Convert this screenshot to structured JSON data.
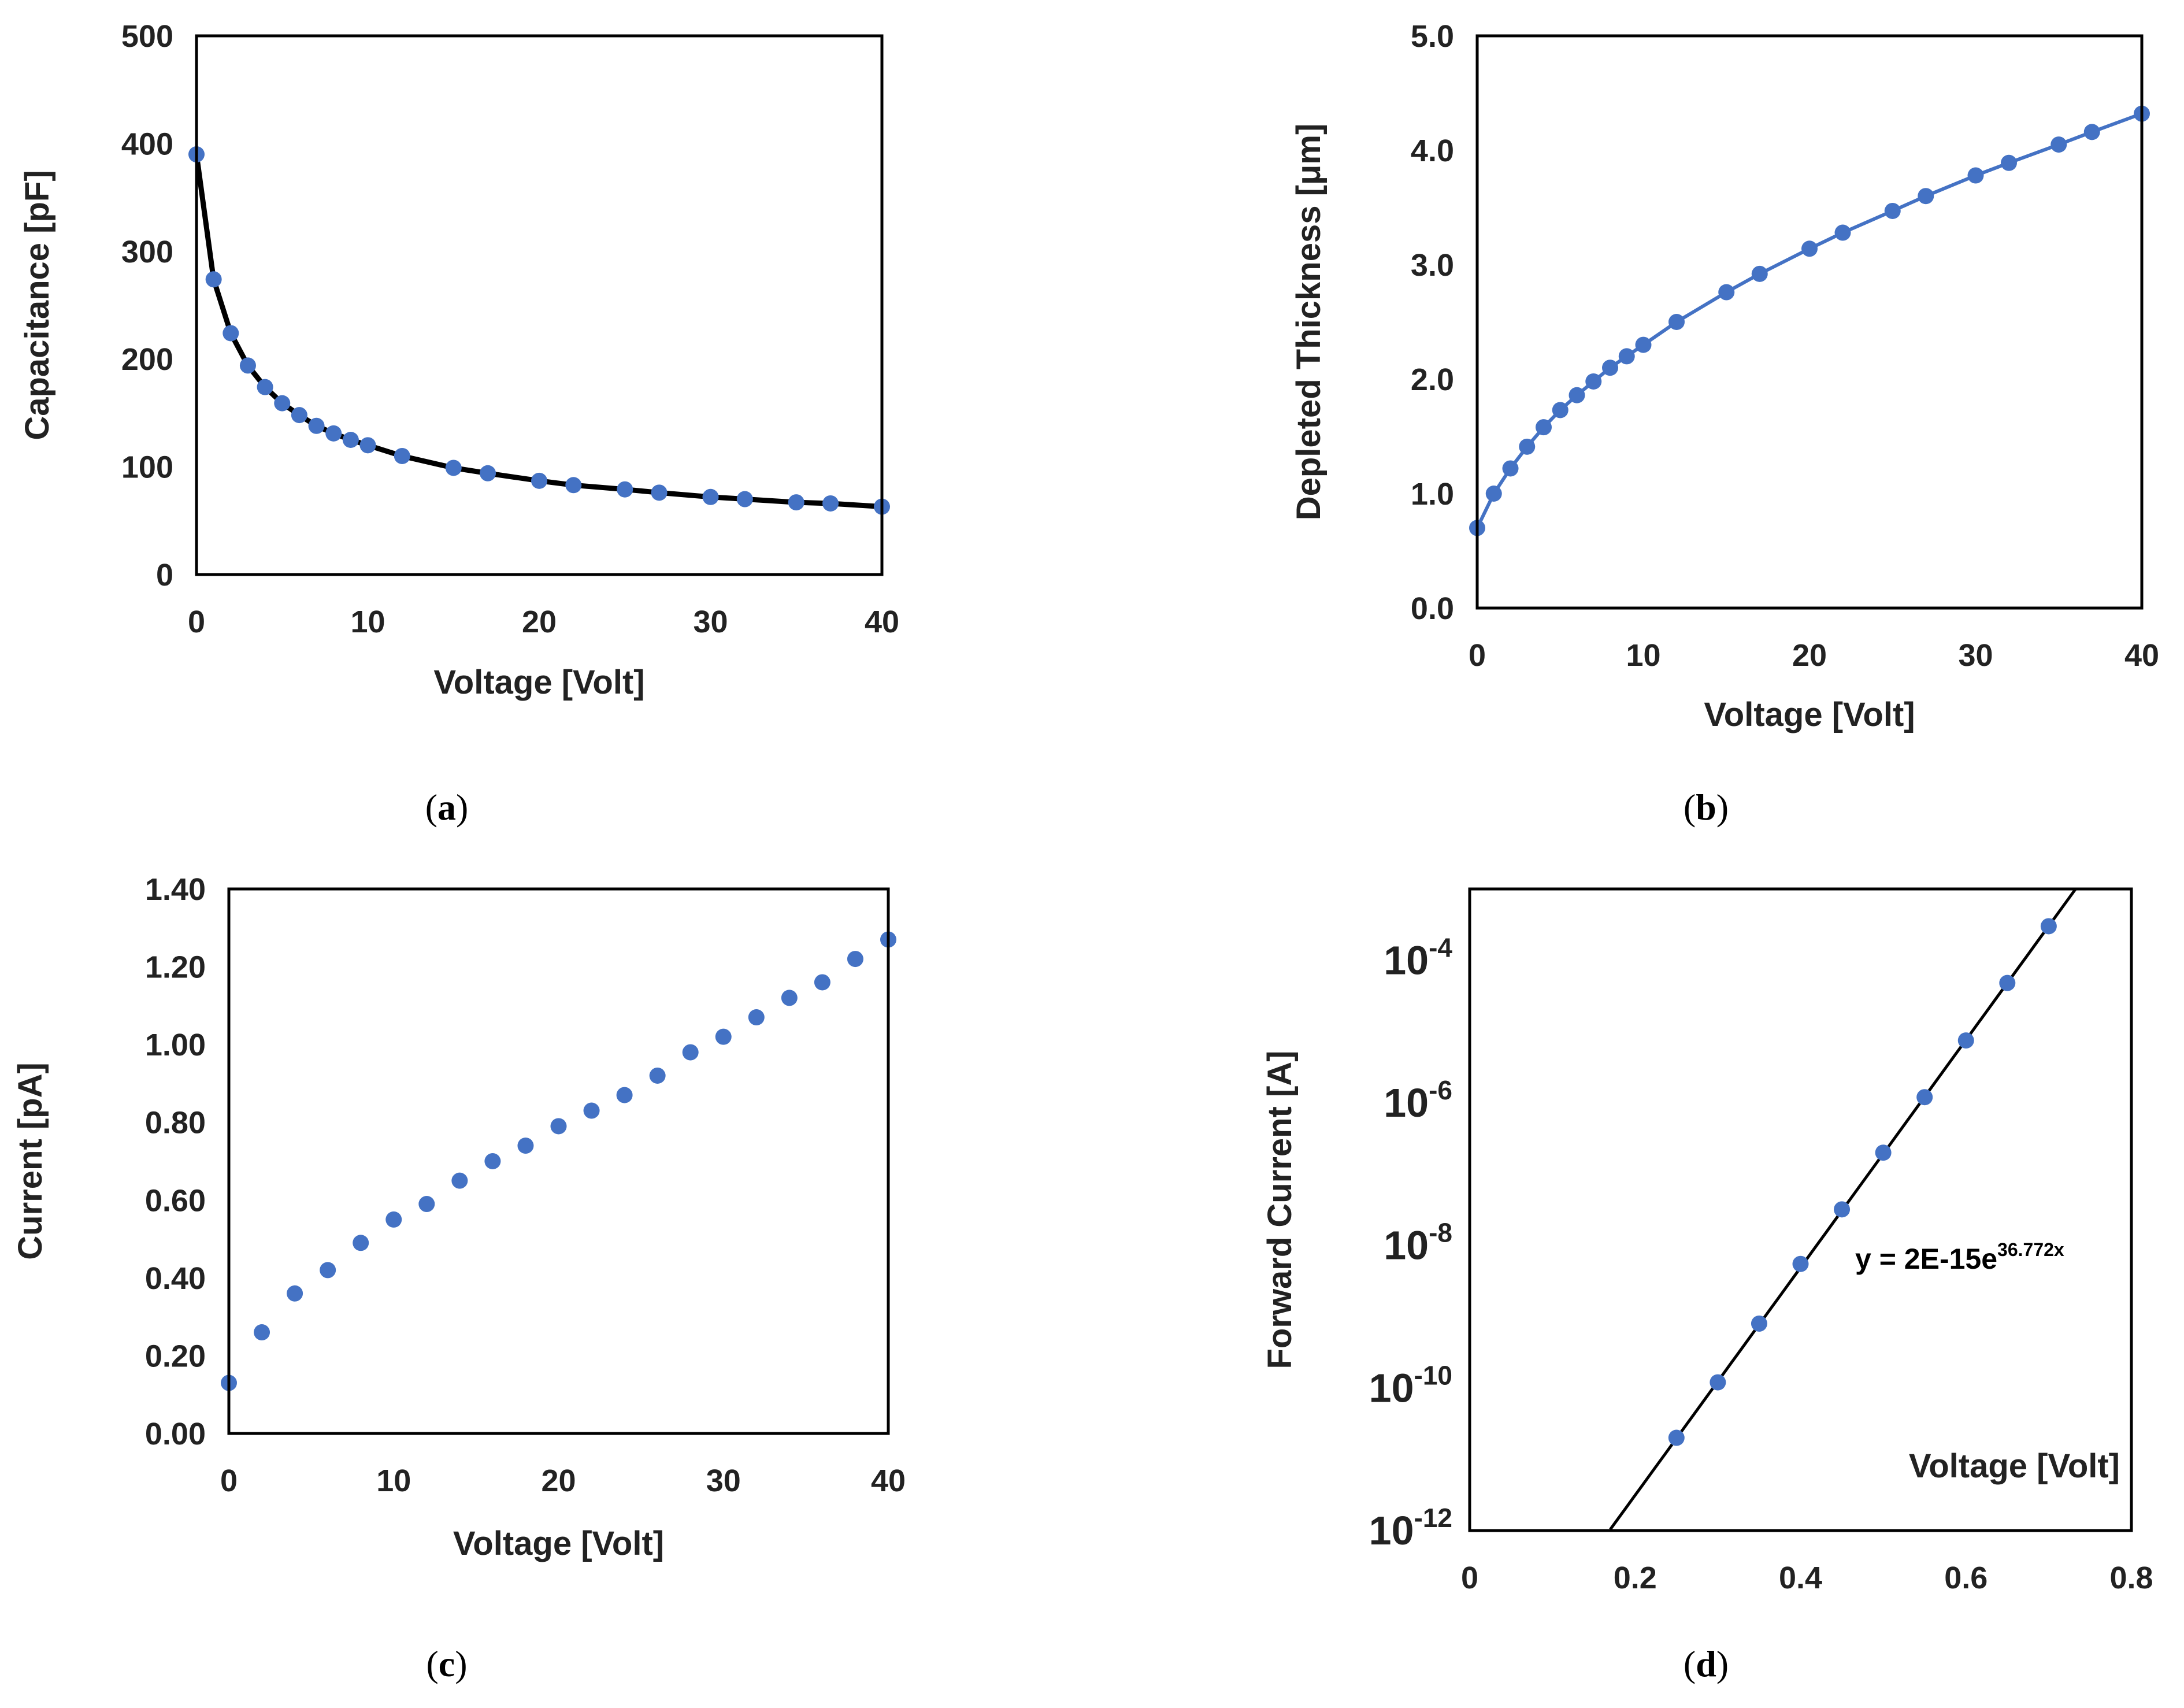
{
  "chart_data": [
    {
      "id": "a",
      "type": "line",
      "panel_label": "a",
      "xlabel": "Voltage [Volt]",
      "ylabel": "Capacitance [pF]",
      "xlim": [
        0,
        40
      ],
      "ylim": [
        0,
        500
      ],
      "xticks": [
        0,
        10,
        20,
        30,
        40
      ],
      "yticks": [
        0,
        100,
        200,
        300,
        400,
        500
      ],
      "ytick_labels": [
        "0",
        "100",
        "200",
        "300",
        "400",
        "500"
      ],
      "grid": false,
      "line_color": "#000000",
      "marker_color": "#4472c4",
      "x": [
        0,
        1,
        2,
        3,
        4,
        5,
        6,
        7,
        8,
        9,
        10,
        12,
        15,
        17,
        20,
        22,
        25,
        27,
        30,
        32,
        35,
        37,
        40
      ],
      "y": [
        390,
        274,
        224,
        194,
        174,
        159,
        148,
        138,
        131,
        125,
        120,
        110,
        99,
        94,
        87,
        83,
        79,
        76,
        72,
        70,
        67,
        66,
        63
      ]
    },
    {
      "id": "b",
      "type": "line",
      "panel_label": "b",
      "xlabel": "Voltage [Volt]",
      "ylabel": "Depleted Thickness  [μm]",
      "xlim": [
        0,
        40
      ],
      "ylim": [
        0,
        5
      ],
      "xticks": [
        0,
        10,
        20,
        30,
        40
      ],
      "yticks": [
        0,
        1,
        2,
        3,
        4,
        5
      ],
      "ytick_labels": [
        "0.0",
        "1.0",
        "2.0",
        "3.0",
        "4.0",
        "5.0"
      ],
      "grid": false,
      "line_color": "#4472c4",
      "marker_color": "#4472c4",
      "x": [
        0,
        1,
        2,
        3,
        4,
        5,
        6,
        7,
        8,
        9,
        10,
        12,
        15,
        17,
        20,
        22,
        25,
        27,
        30,
        32,
        35,
        37,
        40
      ],
      "y": [
        0.7,
        1.0,
        1.22,
        1.41,
        1.58,
        1.73,
        1.86,
        1.98,
        2.1,
        2.2,
        2.3,
        2.5,
        2.76,
        2.92,
        3.14,
        3.28,
        3.47,
        3.6,
        3.78,
        3.89,
        4.05,
        4.16,
        4.32
      ]
    },
    {
      "id": "c",
      "type": "scatter",
      "panel_label": "c",
      "xlabel": "Voltage [Volt]",
      "ylabel": "Current [pA]",
      "xlim": [
        0,
        40
      ],
      "ylim": [
        0,
        1.4
      ],
      "xticks": [
        0,
        10,
        20,
        30,
        40
      ],
      "yticks": [
        0,
        0.2,
        0.4,
        0.6,
        0.8,
        1.0,
        1.2,
        1.4
      ],
      "ytick_labels": [
        "0.00",
        "0.20",
        "0.40",
        "0.60",
        "0.80",
        "1.00",
        "1.20",
        "1.40"
      ],
      "grid": false,
      "marker_color": "#4472c4",
      "x": [
        0,
        2,
        4,
        6,
        8,
        10,
        12,
        14,
        16,
        18,
        20,
        22,
        24,
        26,
        28,
        30,
        32,
        34,
        36,
        38,
        40
      ],
      "y": [
        0.13,
        0.26,
        0.36,
        0.42,
        0.49,
        0.55,
        0.59,
        0.65,
        0.7,
        0.74,
        0.79,
        0.83,
        0.87,
        0.92,
        0.98,
        1.02,
        1.07,
        1.12,
        1.16,
        1.22,
        1.27
      ]
    },
    {
      "id": "d",
      "type": "scatter",
      "panel_label": "d",
      "xlabel": "Voltage [Volt]",
      "ylabel": "Forward Current [A]",
      "xlim": [
        0,
        0.8
      ],
      "yscale": "log",
      "ylim_log10": [
        -12,
        -3
      ],
      "xticks": [
        0,
        0.2,
        0.4,
        0.6,
        0.8
      ],
      "xtick_labels": [
        "0",
        "0.2",
        "0.4",
        "0.6",
        "0.8"
      ],
      "yticks_log10": [
        -12,
        -10,
        -8,
        -6,
        -4
      ],
      "ytick_base": "10",
      "ytick_exponents": [
        "-12",
        "-10",
        "-8",
        "-6",
        "-4"
      ],
      "grid": false,
      "marker_color": "#4472c4",
      "trendline_color": "#000000",
      "trendline": {
        "type": "exponential",
        "a": 2e-15,
        "b": 36.772,
        "x_range": [
          0.17,
          0.75
        ]
      },
      "equation_base": "y = 2E-15e",
      "equation_exp": "36.772x",
      "x": [
        0.25,
        0.3,
        0.35,
        0.4,
        0.45,
        0.5,
        0.55,
        0.6,
        0.65,
        0.7
      ],
      "y": [
        2e-11,
        1.2e-10,
        8e-10,
        5.5e-09,
        3.2e-08,
        2e-07,
        1.2e-06,
        7.5e-06,
        4.8e-05,
        0.0003
      ]
    }
  ]
}
